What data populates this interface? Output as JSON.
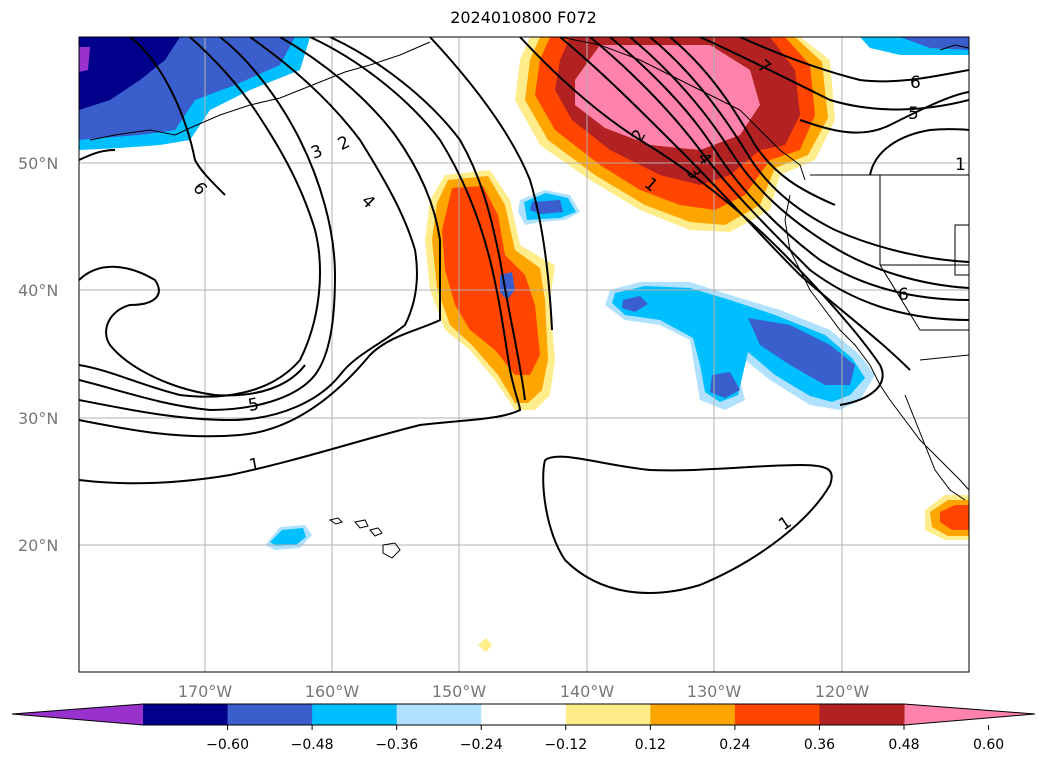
{
  "title": "2024010800 F072",
  "lat_labels": [
    "50°N",
    "40°N",
    "30°N",
    "20°N"
  ],
  "lon_labels": [
    "170°W",
    "160°W",
    "150°W",
    "140°W",
    "130°W",
    "120°W"
  ],
  "colorbar": {
    "ticks": [
      "−0.60",
      "−0.48",
      "−0.36",
      "−0.24",
      "−0.12",
      "0.12",
      "0.24",
      "0.36",
      "0.48",
      "0.60"
    ],
    "colors": [
      "#9932cc",
      "#00008b",
      "#3a5fcd",
      "#00bfff",
      "#b0e2ff",
      "#ffffff",
      "#ffec8b",
      "#ffa500",
      "#ff4500",
      "#b22222",
      "#ff82ab"
    ]
  },
  "contour_labels": [
    "6",
    "2",
    "3",
    "4",
    "5",
    "1",
    "1",
    "2",
    "1",
    "3",
    "4",
    "7",
    "6",
    "5",
    "6",
    "1"
  ]
}
